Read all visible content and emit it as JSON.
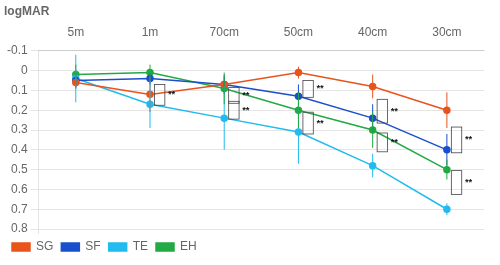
{
  "chart_data": {
    "type": "line",
    "ylabel": "logMAR",
    "categories": [
      "5m",
      "1m",
      "70cm",
      "50cm",
      "40cm",
      "30cm"
    ],
    "series": [
      {
        "name": "SG",
        "color": "#e8541c",
        "values": [
          0.06,
          0.12,
          0.07,
          0.01,
          0.08,
          0.2
        ],
        "errors": [
          0.03,
          0.09,
          0.04,
          0.03,
          0.06,
          0.09
        ]
      },
      {
        "name": "SF",
        "color": "#1a4fcc",
        "values": [
          0.05,
          0.04,
          0.07,
          0.13,
          0.24,
          0.4
        ],
        "errors": [
          0.04,
          0.03,
          0.05,
          0.06,
          0.07,
          0.08
        ]
      },
      {
        "name": "TE",
        "color": "#22bbee",
        "values": [
          0.04,
          0.17,
          0.24,
          0.31,
          0.48,
          0.7
        ],
        "errors": [
          0.12,
          0.12,
          0.16,
          0.16,
          0.06,
          0.03
        ]
      },
      {
        "name": "EH",
        "color": "#22aa44",
        "values": [
          0.02,
          0.01,
          0.09,
          0.2,
          0.3,
          0.5
        ],
        "errors": [
          0.05,
          0.04,
          0.08,
          0.09,
          0.09,
          0.05
        ]
      }
    ],
    "ylim": [
      0.82,
      -0.1
    ],
    "yticks": [
      -0.1,
      0,
      0.1,
      0.2,
      0.3,
      0.4,
      0.5,
      0.6,
      0.7,
      0.8
    ],
    "grid": "y",
    "legend": "lower left",
    "annotations": [
      {
        "x": "1m",
        "y1": 0.07,
        "y2": 0.175,
        "label": "**"
      },
      {
        "x": "70cm",
        "y1": 0.155,
        "y2": 0.245,
        "label": "**"
      },
      {
        "x": "70cm",
        "y1": 0.085,
        "y2": 0.165,
        "label": "**"
      },
      {
        "x": "50cm",
        "y1": 0.05,
        "y2": 0.135,
        "label": "**"
      },
      {
        "x": "50cm",
        "y1": 0.21,
        "y2": 0.32,
        "label": "**"
      },
      {
        "x": "40cm",
        "y1": 0.145,
        "y2": 0.265,
        "label": "**"
      },
      {
        "x": "40cm",
        "y1": 0.315,
        "y2": 0.41,
        "label": "**"
      },
      {
        "x": "30cm",
        "y1": 0.285,
        "y2": 0.415,
        "label": "**"
      },
      {
        "x": "30cm",
        "y1": 0.505,
        "y2": 0.625,
        "label": "**"
      }
    ]
  }
}
